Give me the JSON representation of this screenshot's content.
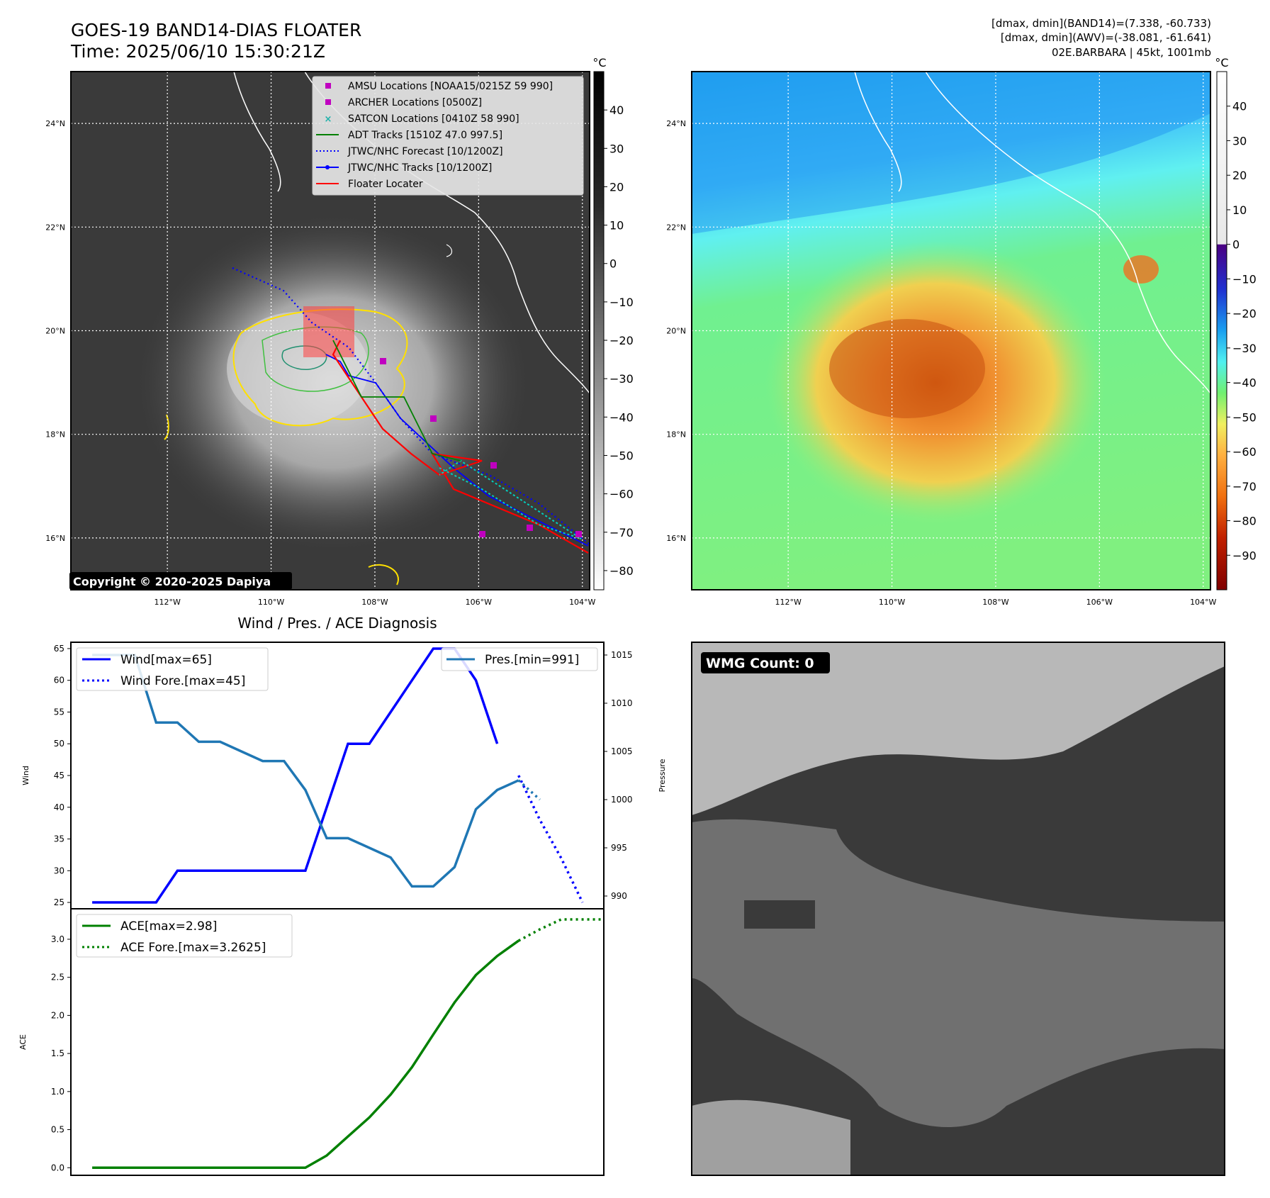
{
  "header": {
    "title_line1": "GOES-19 BAND14-DIAS FLOATER",
    "title_line2": "Time: 2025/06/10 15:30:21Z",
    "right_line1": "[dmax, dmin](BAND14)=(7.338, -60.733)",
    "right_line2": "[dmax, dmin](AWV)=(-38.081, -61.641)",
    "right_line3": "02E.BARBARA | 45kt, 1001mb"
  },
  "map_axes": {
    "lat_labels": [
      "24°N",
      "22°N",
      "20°N",
      "18°N",
      "16°N"
    ],
    "lat_values": [
      24,
      22,
      20,
      18,
      16
    ],
    "lon_labels": [
      "112°W",
      "110°W",
      "108°W",
      "106°W",
      "104°W"
    ],
    "lon_values": [
      -112,
      -110,
      -108,
      -106,
      -104
    ],
    "lon_range": [
      -113.86,
      -103.86
    ],
    "lat_range": [
      15.0,
      25.0
    ]
  },
  "ir_colorbar": {
    "unit": "°C",
    "ticks": [
      "40",
      "30",
      "20",
      "10",
      "0",
      "−10",
      "−20",
      "−30",
      "−40",
      "−50",
      "−60",
      "−70",
      "−80"
    ],
    "tick_values": [
      40,
      30,
      20,
      10,
      0,
      -10,
      -20,
      -30,
      -40,
      -50,
      -60,
      -70,
      -80
    ],
    "range": [
      -85,
      50
    ]
  },
  "awv_colorbar": {
    "unit": "°C",
    "ticks": [
      "40",
      "30",
      "20",
      "10",
      "0",
      "−10",
      "−20",
      "−30",
      "−40",
      "−50",
      "−60",
      "−70",
      "−80",
      "−90"
    ],
    "tick_values": [
      40,
      30,
      20,
      10,
      0,
      -10,
      -20,
      -30,
      -40,
      -50,
      -60,
      -70,
      -80,
      -90
    ],
    "range": [
      -100,
      50
    ]
  },
  "legend": {
    "items": [
      "AMSU Locations [NOAA15/0215Z 59 990]",
      "ARCHER Locations [0500Z]",
      "SATCON Locations [0410Z 58 990]",
      "ADT Tracks [1510Z 47.0 997.5]",
      "JTWC/NHC Forecast [10/1200Z]",
      "JTWC/NHC Tracks [10/1200Z]",
      "Floater Locater"
    ],
    "colors": [
      "#c000c0",
      "#c000c0",
      "#20b2aa",
      "#008000",
      "#0000ff",
      "#0000ff",
      "#ff0000"
    ]
  },
  "copyright": "Copyright © 2020-2025 Dapiya",
  "wmg": {
    "label": "WMG Count: 0"
  },
  "chart_data": [
    {
      "type": "line",
      "title": "Wind / Pres. / ACE Diagnosis",
      "ylabel": "Wind",
      "y2label": "Pressure",
      "ylim": [
        24,
        66
      ],
      "y2lim": [
        990,
        1015
      ],
      "yticks": [
        25,
        30,
        35,
        40,
        45,
        50,
        55,
        60,
        65
      ],
      "y2ticks": [
        990,
        995,
        1000,
        1005,
        1010,
        1015
      ],
      "x": [
        0,
        1,
        2,
        3,
        4,
        5,
        6,
        7,
        8,
        9,
        10,
        11,
        12,
        13,
        14,
        15,
        16,
        17,
        18,
        19,
        20,
        21,
        22,
        23
      ],
      "series": [
        {
          "name": "Wind[max=65]",
          "color": "#0000ff",
          "style": "solid",
          "x": [
            0,
            1,
            2,
            3,
            4,
            5,
            6,
            7,
            8,
            9,
            10,
            11,
            12,
            13,
            14,
            15,
            16,
            17,
            18,
            19
          ],
          "values": [
            25,
            25,
            25,
            25,
            30,
            30,
            30,
            30,
            30,
            30,
            30,
            40,
            50,
            50,
            55,
            60,
            65,
            65,
            60,
            50
          ]
        },
        {
          "name": "Wind Fore.[max=45]",
          "color": "#0000ff",
          "style": "dotted",
          "x": [
            20,
            21,
            22,
            23
          ],
          "values": [
            45,
            38,
            32,
            25
          ]
        },
        {
          "name": "Pres.[min=991]",
          "color": "#1f77b4",
          "style": "solid",
          "axis": "y2",
          "x": [
            0,
            1,
            2,
            3,
            4,
            5,
            6,
            7,
            8,
            9,
            10,
            11,
            12,
            13,
            14,
            15,
            16,
            17,
            18,
            19,
            20
          ],
          "values": [
            1015,
            1015,
            1015,
            1008,
            1008,
            1006,
            1006,
            1005,
            1004,
            1004,
            1001,
            996,
            996,
            995,
            994,
            991,
            991,
            993,
            999,
            1001,
            1002
          ]
        },
        {
          "name": "",
          "color": "#1f77b4",
          "style": "dotted",
          "axis": "y2",
          "x": [
            20,
            21
          ],
          "values": [
            1002,
            1000
          ]
        }
      ]
    },
    {
      "type": "line",
      "ylabel": "ACE",
      "ylim": [
        -0.1,
        3.4
      ],
      "yticks": [
        0.0,
        0.5,
        1.0,
        1.5,
        2.0,
        2.5,
        3.0
      ],
      "ytick_labels": [
        "0.0",
        "0.5",
        "1.0",
        "1.5",
        "2.0",
        "2.5",
        "3.0"
      ],
      "series": [
        {
          "name": "ACE[max=2.98]",
          "color": "#008000",
          "style": "solid",
          "x": [
            0,
            1,
            2,
            3,
            4,
            5,
            6,
            7,
            8,
            9,
            10,
            11,
            12,
            13,
            14,
            15,
            16,
            17,
            18,
            19,
            20
          ],
          "values": [
            0,
            0,
            0,
            0,
            0,
            0,
            0,
            0,
            0,
            0,
            0,
            0.16,
            0.41,
            0.66,
            0.96,
            1.32,
            1.75,
            2.17,
            2.53,
            2.78,
            2.98
          ]
        },
        {
          "name": "ACE Fore.[max=3.2625]",
          "color": "#008000",
          "style": "dotted",
          "x": [
            20,
            21,
            22,
            23,
            24
          ],
          "values": [
            2.98,
            3.13,
            3.26,
            3.26,
            3.26
          ]
        }
      ]
    }
  ]
}
